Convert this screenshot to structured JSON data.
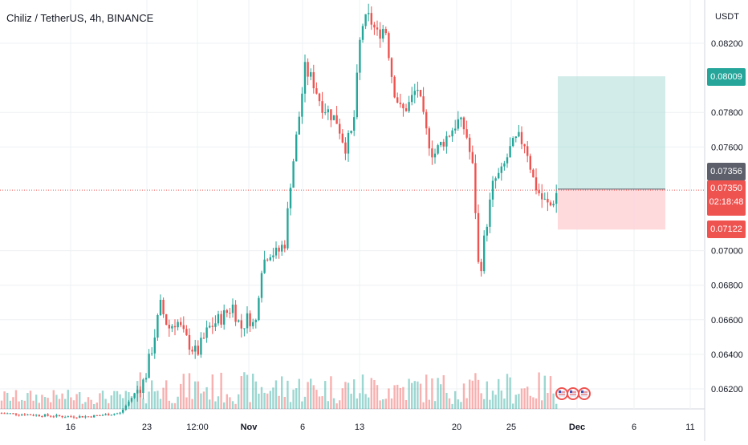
{
  "header": {
    "title": "Chiliz / TetherUS, 4h, BINANCE",
    "currency": "USDT"
  },
  "colors": {
    "up": "#26a69a",
    "down": "#ef5350",
    "target_zone": "#b2dfdb",
    "stop_zone": "#ffcdd2",
    "target_tag": "#26a69a",
    "stop_tag": "#ef5350",
    "last_tag": "#ef5350",
    "entry_tag": "#5d606b",
    "grid": "#eef0f3"
  },
  "price_tags": {
    "target": "0.08009",
    "entry": "0.07356",
    "last_price": "0.07350",
    "countdown": "02:18:48",
    "stop": "0.07122"
  },
  "chart_data": {
    "type": "candlestick",
    "title": "Chiliz / TetherUS, 4h, BINANCE",
    "y_axis": {
      "label": "USDT",
      "range": [
        0.0608,
        0.085
      ],
      "ticks": [
        "0.08200",
        "0.07800",
        "0.07600",
        "0.07000",
        "0.06800",
        "0.06600",
        "0.06400",
        "0.06200"
      ]
    },
    "x_axis": {
      "ticks": [
        "16",
        "23",
        "12:00",
        "Nov",
        "6",
        "13",
        "20",
        "25",
        "Dec",
        "6",
        "11"
      ]
    },
    "grid": true,
    "series_close_path": [
      [
        0,
        0.0606
      ],
      [
        40,
        0.0605
      ],
      [
        80,
        0.0604
      ],
      [
        110,
        0.0604
      ],
      [
        130,
        0.0605
      ],
      [
        150,
        0.0606
      ],
      [
        180,
        0.0625
      ],
      [
        190,
        0.0645
      ],
      [
        200,
        0.0668
      ],
      [
        210,
        0.0655
      ],
      [
        220,
        0.066
      ],
      [
        230,
        0.065
      ],
      [
        245,
        0.064
      ],
      [
        260,
        0.0655
      ],
      [
        280,
        0.0663
      ],
      [
        290,
        0.0668
      ],
      [
        300,
        0.0655
      ],
      [
        310,
        0.0662
      ],
      [
        318,
        0.0655
      ],
      [
        325,
        0.069
      ],
      [
        335,
        0.07
      ],
      [
        345,
        0.0698
      ],
      [
        355,
        0.0705
      ],
      [
        362,
        0.074
      ],
      [
        372,
        0.0775
      ],
      [
        380,
        0.0805
      ],
      [
        390,
        0.0798
      ],
      [
        400,
        0.0785
      ],
      [
        410,
        0.078
      ],
      [
        420,
        0.0775
      ],
      [
        430,
        0.076
      ],
      [
        440,
        0.077
      ],
      [
        450,
        0.083
      ],
      [
        460,
        0.0835
      ],
      [
        470,
        0.0825
      ],
      [
        480,
        0.083
      ],
      [
        490,
        0.0795
      ],
      [
        500,
        0.078
      ],
      [
        510,
        0.0785
      ],
      [
        520,
        0.0795
      ],
      [
        530,
        0.077
      ],
      [
        540,
        0.0755
      ],
      [
        550,
        0.0762
      ],
      [
        560,
        0.0768
      ],
      [
        570,
        0.0775
      ],
      [
        580,
        0.077
      ],
      [
        590,
        0.0745
      ],
      [
        597,
        0.0683
      ],
      [
        605,
        0.0712
      ],
      [
        615,
        0.074
      ],
      [
        625,
        0.0745
      ],
      [
        635,
        0.0758
      ],
      [
        645,
        0.0765
      ],
      [
        655,
        0.0762
      ],
      [
        665,
        0.074
      ],
      [
        675,
        0.073
      ],
      [
        685,
        0.0725
      ],
      [
        695,
        0.0735
      ]
    ],
    "position": {
      "entry": 0.07356,
      "target": 0.08009,
      "stop": 0.07122,
      "last_price": 0.0735
    }
  }
}
